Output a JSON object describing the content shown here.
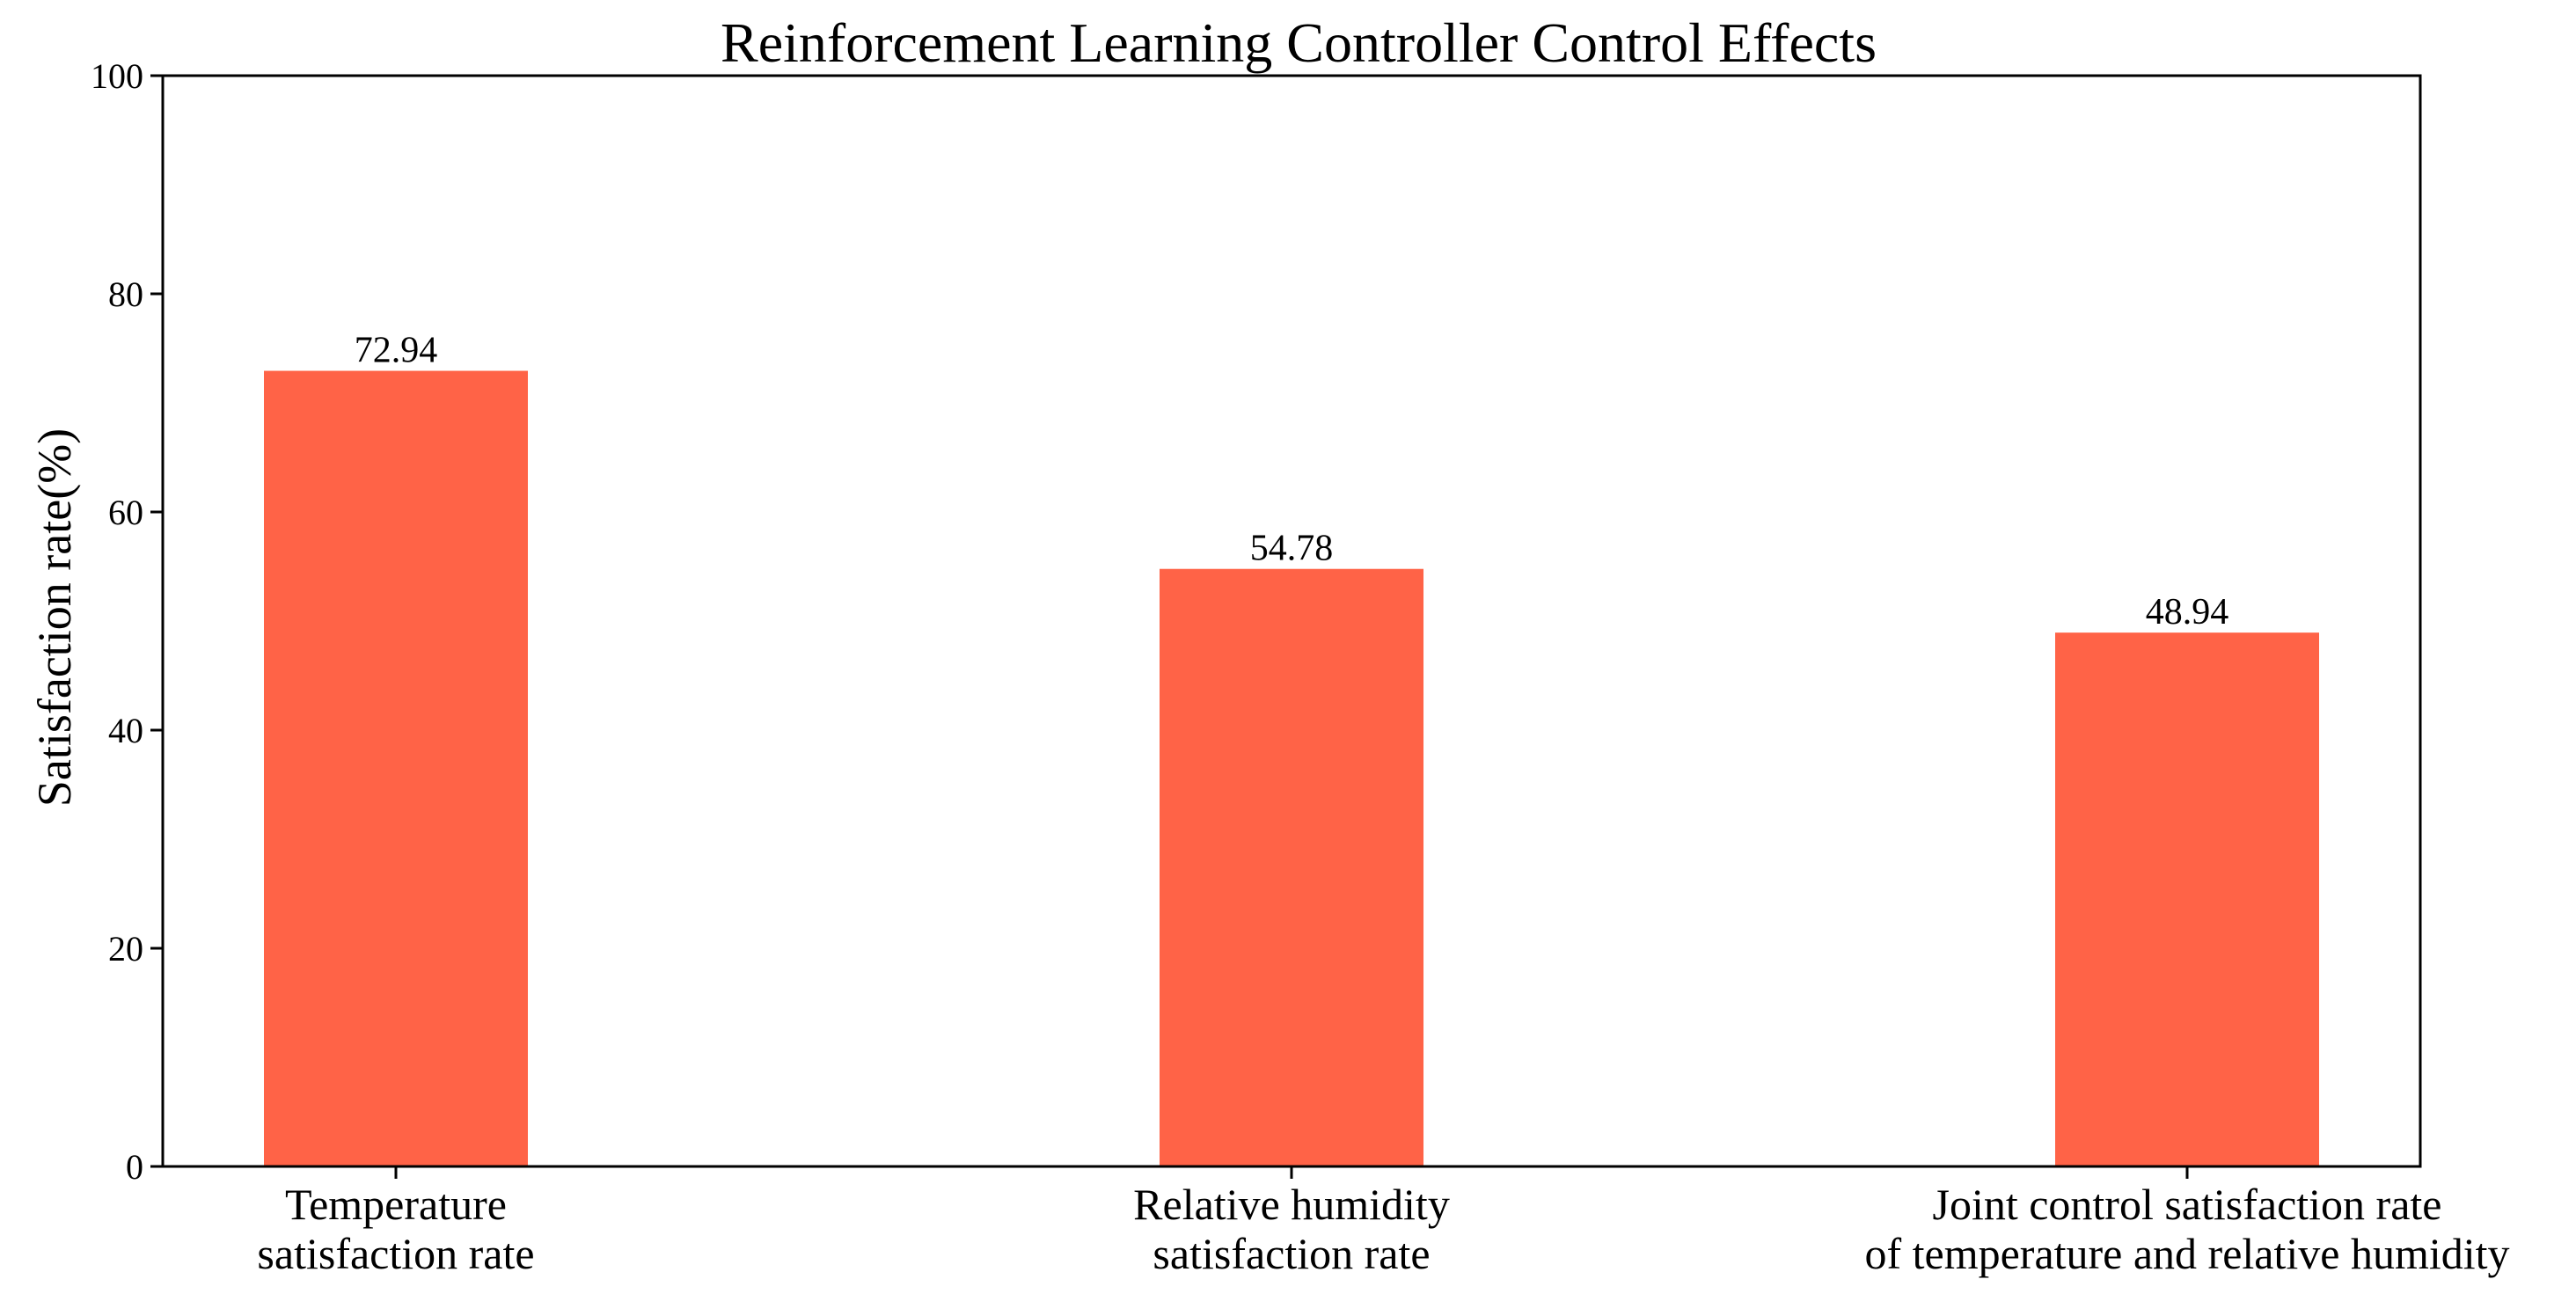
{
  "chart_data": {
    "type": "bar",
    "title": "Reinforcement Learning Controller Control Effects",
    "xlabel": "",
    "ylabel": "Satisfaction rate(%)",
    "ylim": [
      0,
      100
    ],
    "yticks": [
      0,
      20,
      40,
      60,
      80,
      100
    ],
    "grid": false,
    "legend": "none",
    "bar_color": "#FF6347",
    "categories": [
      [
        "Temperature",
        "satisfaction rate"
      ],
      [
        "Relative humidity",
        "satisfaction rate"
      ],
      [
        "Joint control satisfaction rate",
        "of temperature and relative humidity"
      ]
    ],
    "values": [
      72.94,
      54.78,
      48.94
    ],
    "value_labels": [
      "72.94",
      "54.78",
      "48.94"
    ]
  }
}
